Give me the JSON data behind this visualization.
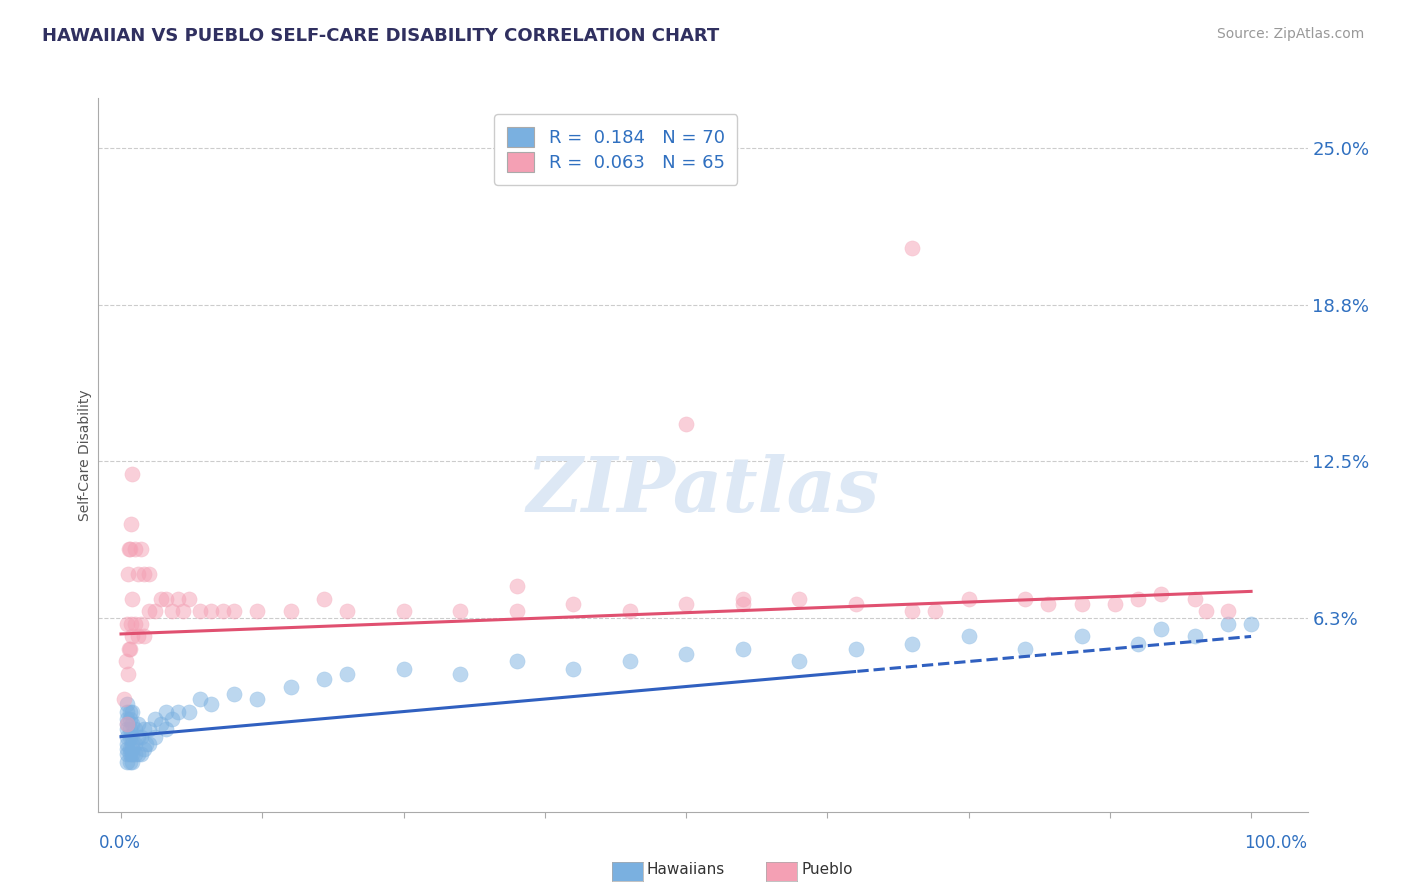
{
  "title": "HAWAIIAN VS PUEBLO SELF-CARE DISABILITY CORRELATION CHART",
  "source": "Source: ZipAtlas.com",
  "ylabel": "Self-Care Disability",
  "yticks": [
    0.0,
    0.0625,
    0.125,
    0.1875,
    0.25
  ],
  "ytick_labels": [
    "",
    "6.3%",
    "12.5%",
    "18.8%",
    "25.0%"
  ],
  "xlim": [
    -0.02,
    1.05
  ],
  "ylim": [
    -0.015,
    0.27
  ],
  "hawaiian_color": "#7ab0e0",
  "pueblo_color": "#f4a0b4",
  "hawaiian_line_color": "#3060c0",
  "pueblo_line_color": "#e05070",
  "legend_R_label_color": "#3070c0",
  "background_color": "#ffffff",
  "grid_color": "#cccccc",
  "title_color": "#303060",
  "axis_label_color": "#3070c0",
  "hawaiian_scatter_x": [
    0.005,
    0.005,
    0.005,
    0.005,
    0.005,
    0.005,
    0.005,
    0.005,
    0.005,
    0.005,
    0.008,
    0.008,
    0.008,
    0.008,
    0.008,
    0.008,
    0.008,
    0.01,
    0.01,
    0.01,
    0.01,
    0.01,
    0.01,
    0.01,
    0.012,
    0.012,
    0.012,
    0.015,
    0.015,
    0.015,
    0.018,
    0.018,
    0.02,
    0.02,
    0.022,
    0.025,
    0.025,
    0.03,
    0.03,
    0.035,
    0.04,
    0.04,
    0.045,
    0.05,
    0.06,
    0.07,
    0.08,
    0.1,
    0.12,
    0.15,
    0.18,
    0.2,
    0.25,
    0.3,
    0.35,
    0.4,
    0.45,
    0.5,
    0.55,
    0.6,
    0.65,
    0.7,
    0.75,
    0.8,
    0.85,
    0.9,
    0.92,
    0.95,
    0.98,
    1.0
  ],
  "hawaiian_scatter_y": [
    0.005,
    0.008,
    0.01,
    0.012,
    0.015,
    0.018,
    0.02,
    0.022,
    0.025,
    0.028,
    0.005,
    0.008,
    0.01,
    0.015,
    0.018,
    0.022,
    0.025,
    0.005,
    0.008,
    0.01,
    0.012,
    0.015,
    0.02,
    0.025,
    0.008,
    0.012,
    0.018,
    0.008,
    0.015,
    0.02,
    0.008,
    0.015,
    0.01,
    0.018,
    0.012,
    0.012,
    0.018,
    0.015,
    0.022,
    0.02,
    0.018,
    0.025,
    0.022,
    0.025,
    0.025,
    0.03,
    0.028,
    0.032,
    0.03,
    0.035,
    0.038,
    0.04,
    0.042,
    0.04,
    0.045,
    0.042,
    0.045,
    0.048,
    0.05,
    0.045,
    0.05,
    0.052,
    0.055,
    0.05,
    0.055,
    0.052,
    0.058,
    0.055,
    0.06,
    0.06
  ],
  "pueblo_scatter_x": [
    0.003,
    0.004,
    0.005,
    0.005,
    0.006,
    0.006,
    0.007,
    0.007,
    0.008,
    0.008,
    0.009,
    0.009,
    0.01,
    0.01,
    0.01,
    0.012,
    0.012,
    0.015,
    0.015,
    0.018,
    0.018,
    0.02,
    0.02,
    0.025,
    0.025,
    0.03,
    0.035,
    0.04,
    0.045,
    0.05,
    0.055,
    0.06,
    0.07,
    0.08,
    0.09,
    0.1,
    0.12,
    0.15,
    0.18,
    0.2,
    0.25,
    0.3,
    0.35,
    0.4,
    0.45,
    0.5,
    0.55,
    0.6,
    0.65,
    0.7,
    0.75,
    0.8,
    0.82,
    0.85,
    0.88,
    0.9,
    0.92,
    0.95,
    0.96,
    0.98,
    0.35,
    0.5,
    0.55,
    0.7,
    0.72
  ],
  "pueblo_scatter_y": [
    0.03,
    0.045,
    0.02,
    0.06,
    0.04,
    0.08,
    0.05,
    0.09,
    0.05,
    0.09,
    0.06,
    0.1,
    0.055,
    0.07,
    0.12,
    0.06,
    0.09,
    0.055,
    0.08,
    0.06,
    0.09,
    0.055,
    0.08,
    0.065,
    0.08,
    0.065,
    0.07,
    0.07,
    0.065,
    0.07,
    0.065,
    0.07,
    0.065,
    0.065,
    0.065,
    0.065,
    0.065,
    0.065,
    0.07,
    0.065,
    0.065,
    0.065,
    0.065,
    0.068,
    0.065,
    0.068,
    0.068,
    0.07,
    0.068,
    0.065,
    0.07,
    0.07,
    0.068,
    0.068,
    0.068,
    0.07,
    0.072,
    0.07,
    0.065,
    0.065,
    0.075,
    0.14,
    0.07,
    0.21,
    0.065
  ],
  "hawaiian_R": 0.184,
  "hawaiian_N": 70,
  "pueblo_R": 0.063,
  "pueblo_N": 65,
  "trend_split": 0.65
}
